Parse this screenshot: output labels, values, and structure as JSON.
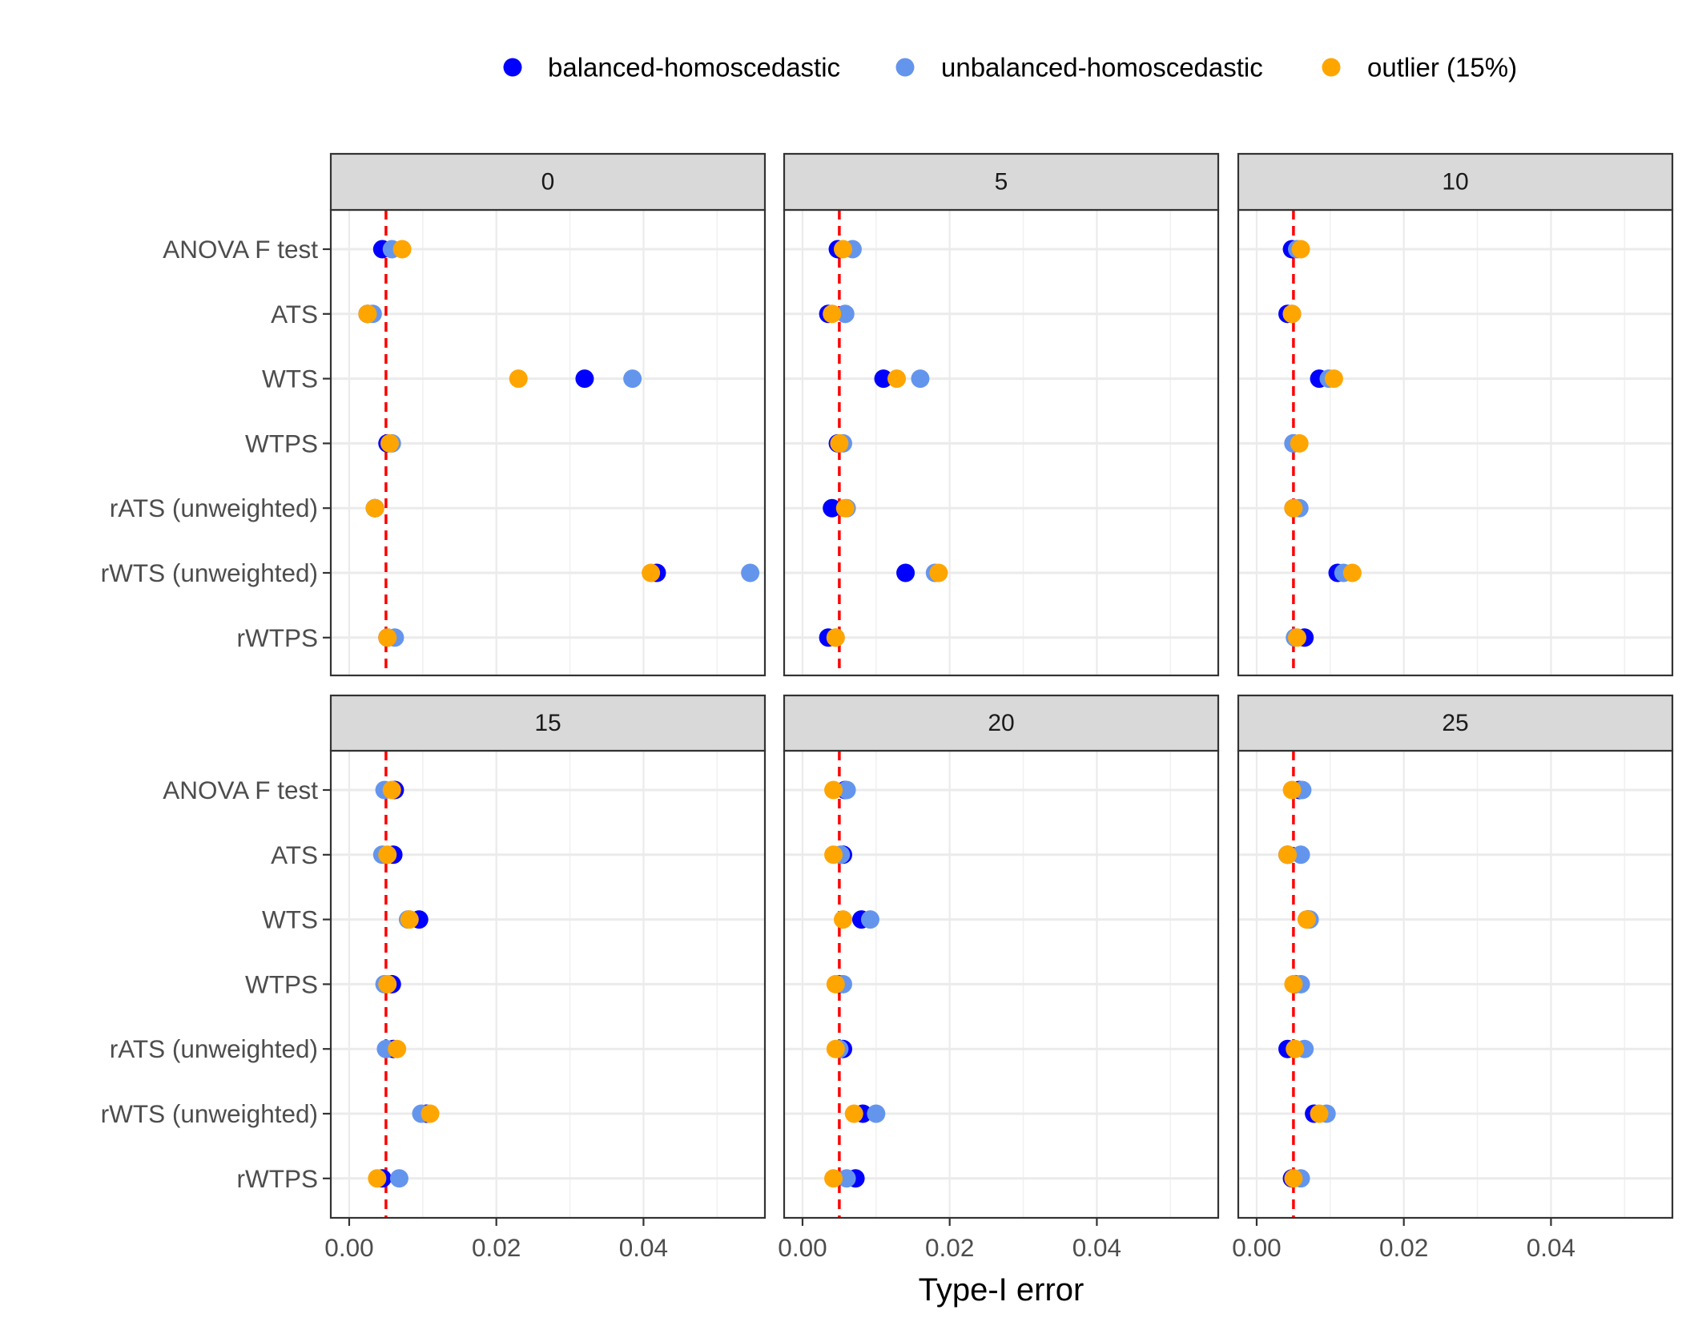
{
  "chart_data": {
    "type": "scatter",
    "xlabel": "Type-I error",
    "ylabel": "",
    "xlim": [
      -0.0025,
      0.0565
    ],
    "x_ticks": [
      0.0,
      0.02,
      0.04
    ],
    "x_tick_labels": [
      "0.00",
      "0.02",
      "0.04"
    ],
    "grid": true,
    "legend_position": "top",
    "reference_line": {
      "x": 0.005,
      "color": "#ff0000",
      "style": "dashed"
    },
    "categories": [
      "ANOVA F test",
      "ATS",
      "WTS",
      "WTPS",
      "rATS (unweighted)",
      "rWTS (unweighted)",
      "rWTPS"
    ],
    "series": [
      {
        "name": "balanced-homoscedastic",
        "color": "#0000ff"
      },
      {
        "name": "unbalanced-homoscedastic",
        "color": "#6495ed"
      },
      {
        "name": "outlier (15%)",
        "color": "#ffa500"
      }
    ],
    "panels": [
      {
        "label": "0",
        "values": {
          "balanced-homoscedastic": [
            0.0045,
            0.0025,
            0.032,
            0.0052,
            0.0035,
            0.0418,
            0.0052
          ],
          "unbalanced-homoscedastic": [
            0.0058,
            0.0032,
            0.0385,
            0.0058,
            0.0035,
            0.0545,
            0.0062
          ],
          "outlier (15%)": [
            0.0072,
            0.0025,
            0.023,
            0.0055,
            0.0035,
            0.041,
            0.0052
          ]
        }
      },
      {
        "label": "5",
        "values": {
          "balanced-homoscedastic": [
            0.0048,
            0.0035,
            0.011,
            0.0048,
            0.004,
            0.014,
            0.0035
          ],
          "unbalanced-homoscedastic": [
            0.0068,
            0.0058,
            0.016,
            0.0055,
            0.006,
            0.018,
            0.0045
          ],
          "outlier (15%)": [
            0.0055,
            0.004,
            0.0128,
            0.005,
            0.0058,
            0.0185,
            0.0045
          ]
        }
      },
      {
        "label": "10",
        "values": {
          "balanced-homoscedastic": [
            0.0048,
            0.0042,
            0.0085,
            0.005,
            0.005,
            0.011,
            0.0065
          ],
          "unbalanced-homoscedastic": [
            0.0055,
            0.0048,
            0.0098,
            0.005,
            0.0058,
            0.0118,
            0.0052
          ],
          "outlier (15%)": [
            0.006,
            0.0048,
            0.0105,
            0.0058,
            0.005,
            0.013,
            0.0055
          ]
        }
      },
      {
        "label": "15",
        "values": {
          "balanced-homoscedastic": [
            0.0062,
            0.006,
            0.0095,
            0.0058,
            0.006,
            0.0105,
            0.0045
          ],
          "unbalanced-homoscedastic": [
            0.0048,
            0.0045,
            0.008,
            0.0048,
            0.005,
            0.0098,
            0.0068
          ],
          "outlier (15%)": [
            0.0058,
            0.0052,
            0.0082,
            0.0052,
            0.0065,
            0.011,
            0.0038
          ]
        }
      },
      {
        "label": "20",
        "values": {
          "balanced-homoscedastic": [
            0.0058,
            0.0055,
            0.008,
            0.005,
            0.0055,
            0.0082,
            0.0072
          ],
          "unbalanced-homoscedastic": [
            0.006,
            0.0052,
            0.0092,
            0.0055,
            0.005,
            0.01,
            0.006
          ],
          "outlier (15%)": [
            0.0042,
            0.0042,
            0.0055,
            0.0045,
            0.0045,
            0.007,
            0.0042
          ]
        }
      },
      {
        "label": "25",
        "values": {
          "balanced-homoscedastic": [
            0.0058,
            0.0042,
            0.007,
            0.0052,
            0.0042,
            0.0078,
            0.0048
          ],
          "unbalanced-homoscedastic": [
            0.0062,
            0.006,
            0.0072,
            0.006,
            0.0065,
            0.0095,
            0.006
          ],
          "outlier (15%)": [
            0.0048,
            0.0042,
            0.0068,
            0.005,
            0.0052,
            0.0085,
            0.005
          ]
        }
      }
    ]
  }
}
